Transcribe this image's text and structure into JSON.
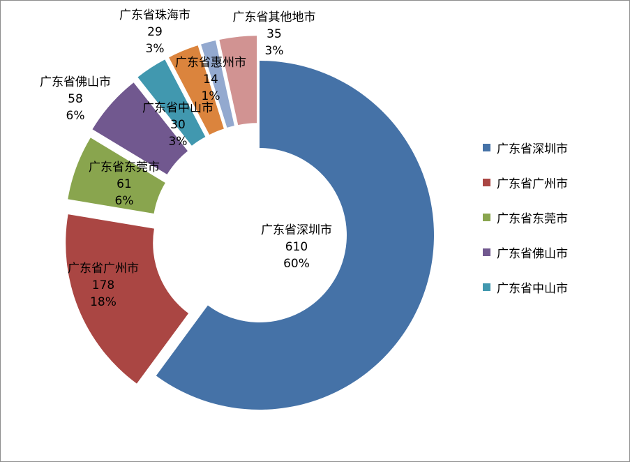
{
  "chart_data": {
    "type": "pie",
    "variant": "exploded-doughnut",
    "slices": [
      {
        "label": "广东省深圳市",
        "value": 610,
        "percent": "60%",
        "color": "#4572A7"
      },
      {
        "label": "广东省广州市",
        "value": 178,
        "percent": "18%",
        "color": "#AA4643"
      },
      {
        "label": "广东省东莞市",
        "value": 61,
        "percent": "6%",
        "color": "#89A54E"
      },
      {
        "label": "广东省佛山市",
        "value": 58,
        "percent": "6%",
        "color": "#71588F"
      },
      {
        "label": "广东省中山市",
        "value": 30,
        "percent": "3%",
        "color": "#4198AF"
      },
      {
        "label": "广东省珠海市",
        "value": 29,
        "percent": "3%",
        "color": "#DB843D"
      },
      {
        "label": "广东省惠州市",
        "value": 14,
        "percent": "1%",
        "color": "#93A9CF"
      },
      {
        "label": "广东省其他地市",
        "value": 35,
        "percent": "3%",
        "color": "#D19392"
      }
    ],
    "legend": {
      "position": "right",
      "entries": [
        "广东省深圳市",
        "广东省广州市",
        "广东省东莞市",
        "广东省佛山市",
        "广东省中山市"
      ]
    }
  }
}
